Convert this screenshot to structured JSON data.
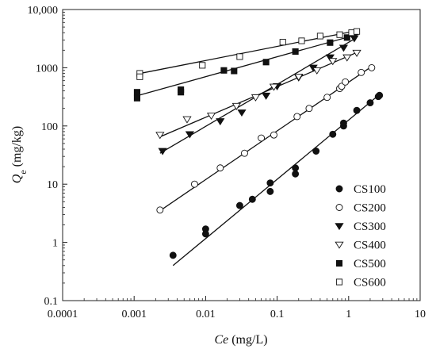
{
  "chart_data": {
    "type": "scatter",
    "x_scale": "log",
    "y_scale": "log",
    "xlim": [
      0.0001,
      10
    ],
    "ylim": [
      0.1,
      10000
    ],
    "x_ticks": [
      "0.0001",
      "0.001",
      "0.01",
      "0.1",
      "1",
      "10"
    ],
    "y_ticks": [
      "0.1",
      "1",
      "10",
      "100",
      "1000",
      "10,000"
    ],
    "xlabel": {
      "italic": "Ce",
      "rest": " (mg/L)"
    },
    "ylabel": {
      "italic": "Q",
      "sub": "e",
      "rest": " (mg/kg)"
    },
    "grid": false,
    "legend_position": "lower-right",
    "series": [
      {
        "name": "CS100",
        "marker": "circle",
        "filled": true,
        "points": [
          [
            0.0035,
            0.6
          ],
          [
            0.01,
            1.7
          ],
          [
            0.01,
            1.4
          ],
          [
            0.03,
            4.3
          ],
          [
            0.045,
            5.5
          ],
          [
            0.08,
            10.5
          ],
          [
            0.08,
            7.5
          ],
          [
            0.18,
            15
          ],
          [
            0.18,
            19
          ],
          [
            0.35,
            37
          ],
          [
            0.6,
            72
          ],
          [
            0.85,
            100
          ],
          [
            0.85,
            112
          ],
          [
            1.3,
            185
          ],
          [
            2.0,
            250
          ],
          [
            2.6,
            320
          ],
          [
            2.7,
            335
          ]
        ],
        "fit": [
          [
            0.0035,
            0.4
          ],
          [
            2.8,
            360
          ]
        ]
      },
      {
        "name": "CS200",
        "marker": "circle",
        "filled": false,
        "points": [
          [
            0.0023,
            3.6
          ],
          [
            0.007,
            10
          ],
          [
            0.016,
            19
          ],
          [
            0.035,
            34
          ],
          [
            0.06,
            62
          ],
          [
            0.09,
            70
          ],
          [
            0.19,
            145
          ],
          [
            0.28,
            200
          ],
          [
            0.5,
            310
          ],
          [
            0.75,
            440
          ],
          [
            0.8,
            480
          ],
          [
            0.9,
            570
          ],
          [
            1.5,
            830
          ],
          [
            2.1,
            1000
          ]
        ],
        "fit": [
          [
            0.0023,
            3.5
          ],
          [
            2.1,
            1050
          ]
        ]
      },
      {
        "name": "CS300",
        "marker": "triangle-down",
        "filled": true,
        "points": [
          [
            0.0025,
            37
          ],
          [
            0.006,
            72
          ],
          [
            0.016,
            120
          ],
          [
            0.032,
            170
          ],
          [
            0.07,
            330
          ],
          [
            0.1,
            480
          ],
          [
            0.2,
            680
          ],
          [
            0.32,
            1000
          ],
          [
            0.55,
            1500
          ],
          [
            0.85,
            2200
          ],
          [
            1.2,
            3200
          ]
        ],
        "fit": [
          [
            0.0023,
            34
          ],
          [
            1.3,
            3300
          ]
        ]
      },
      {
        "name": "CS400",
        "marker": "triangle-down",
        "filled": false,
        "points": [
          [
            0.0023,
            70
          ],
          [
            0.0055,
            130
          ],
          [
            0.012,
            150
          ],
          [
            0.027,
            220
          ],
          [
            0.05,
            310
          ],
          [
            0.09,
            470
          ],
          [
            0.2,
            700
          ],
          [
            0.36,
            900
          ],
          [
            0.6,
            1300
          ],
          [
            0.95,
            1500
          ],
          [
            1.3,
            1800
          ]
        ],
        "fit": [
          [
            0.0023,
            65
          ],
          [
            1.4,
            1900
          ]
        ]
      },
      {
        "name": "CS500",
        "marker": "square",
        "filled": true,
        "points": [
          [
            0.0011,
            380
          ],
          [
            0.0011,
            300
          ],
          [
            0.0045,
            420
          ],
          [
            0.0045,
            380
          ],
          [
            0.018,
            900
          ],
          [
            0.025,
            880
          ],
          [
            0.07,
            1250
          ],
          [
            0.18,
            1900
          ],
          [
            0.55,
            2700
          ],
          [
            0.95,
            3300
          ]
        ],
        "fit": [
          [
            0.0011,
            330
          ],
          [
            1.4,
            3800
          ]
        ]
      },
      {
        "name": "CS600",
        "marker": "square",
        "filled": false,
        "points": [
          [
            0.0012,
            800
          ],
          [
            0.0012,
            700
          ],
          [
            0.009,
            1100
          ],
          [
            0.03,
            1550
          ],
          [
            0.12,
            2750
          ],
          [
            0.22,
            2900
          ],
          [
            0.4,
            3500
          ],
          [
            0.75,
            3700
          ],
          [
            1.1,
            4000
          ],
          [
            1.3,
            4200
          ]
        ],
        "fit": [
          [
            0.0011,
            780
          ],
          [
            1.4,
            4400
          ]
        ]
      }
    ]
  }
}
